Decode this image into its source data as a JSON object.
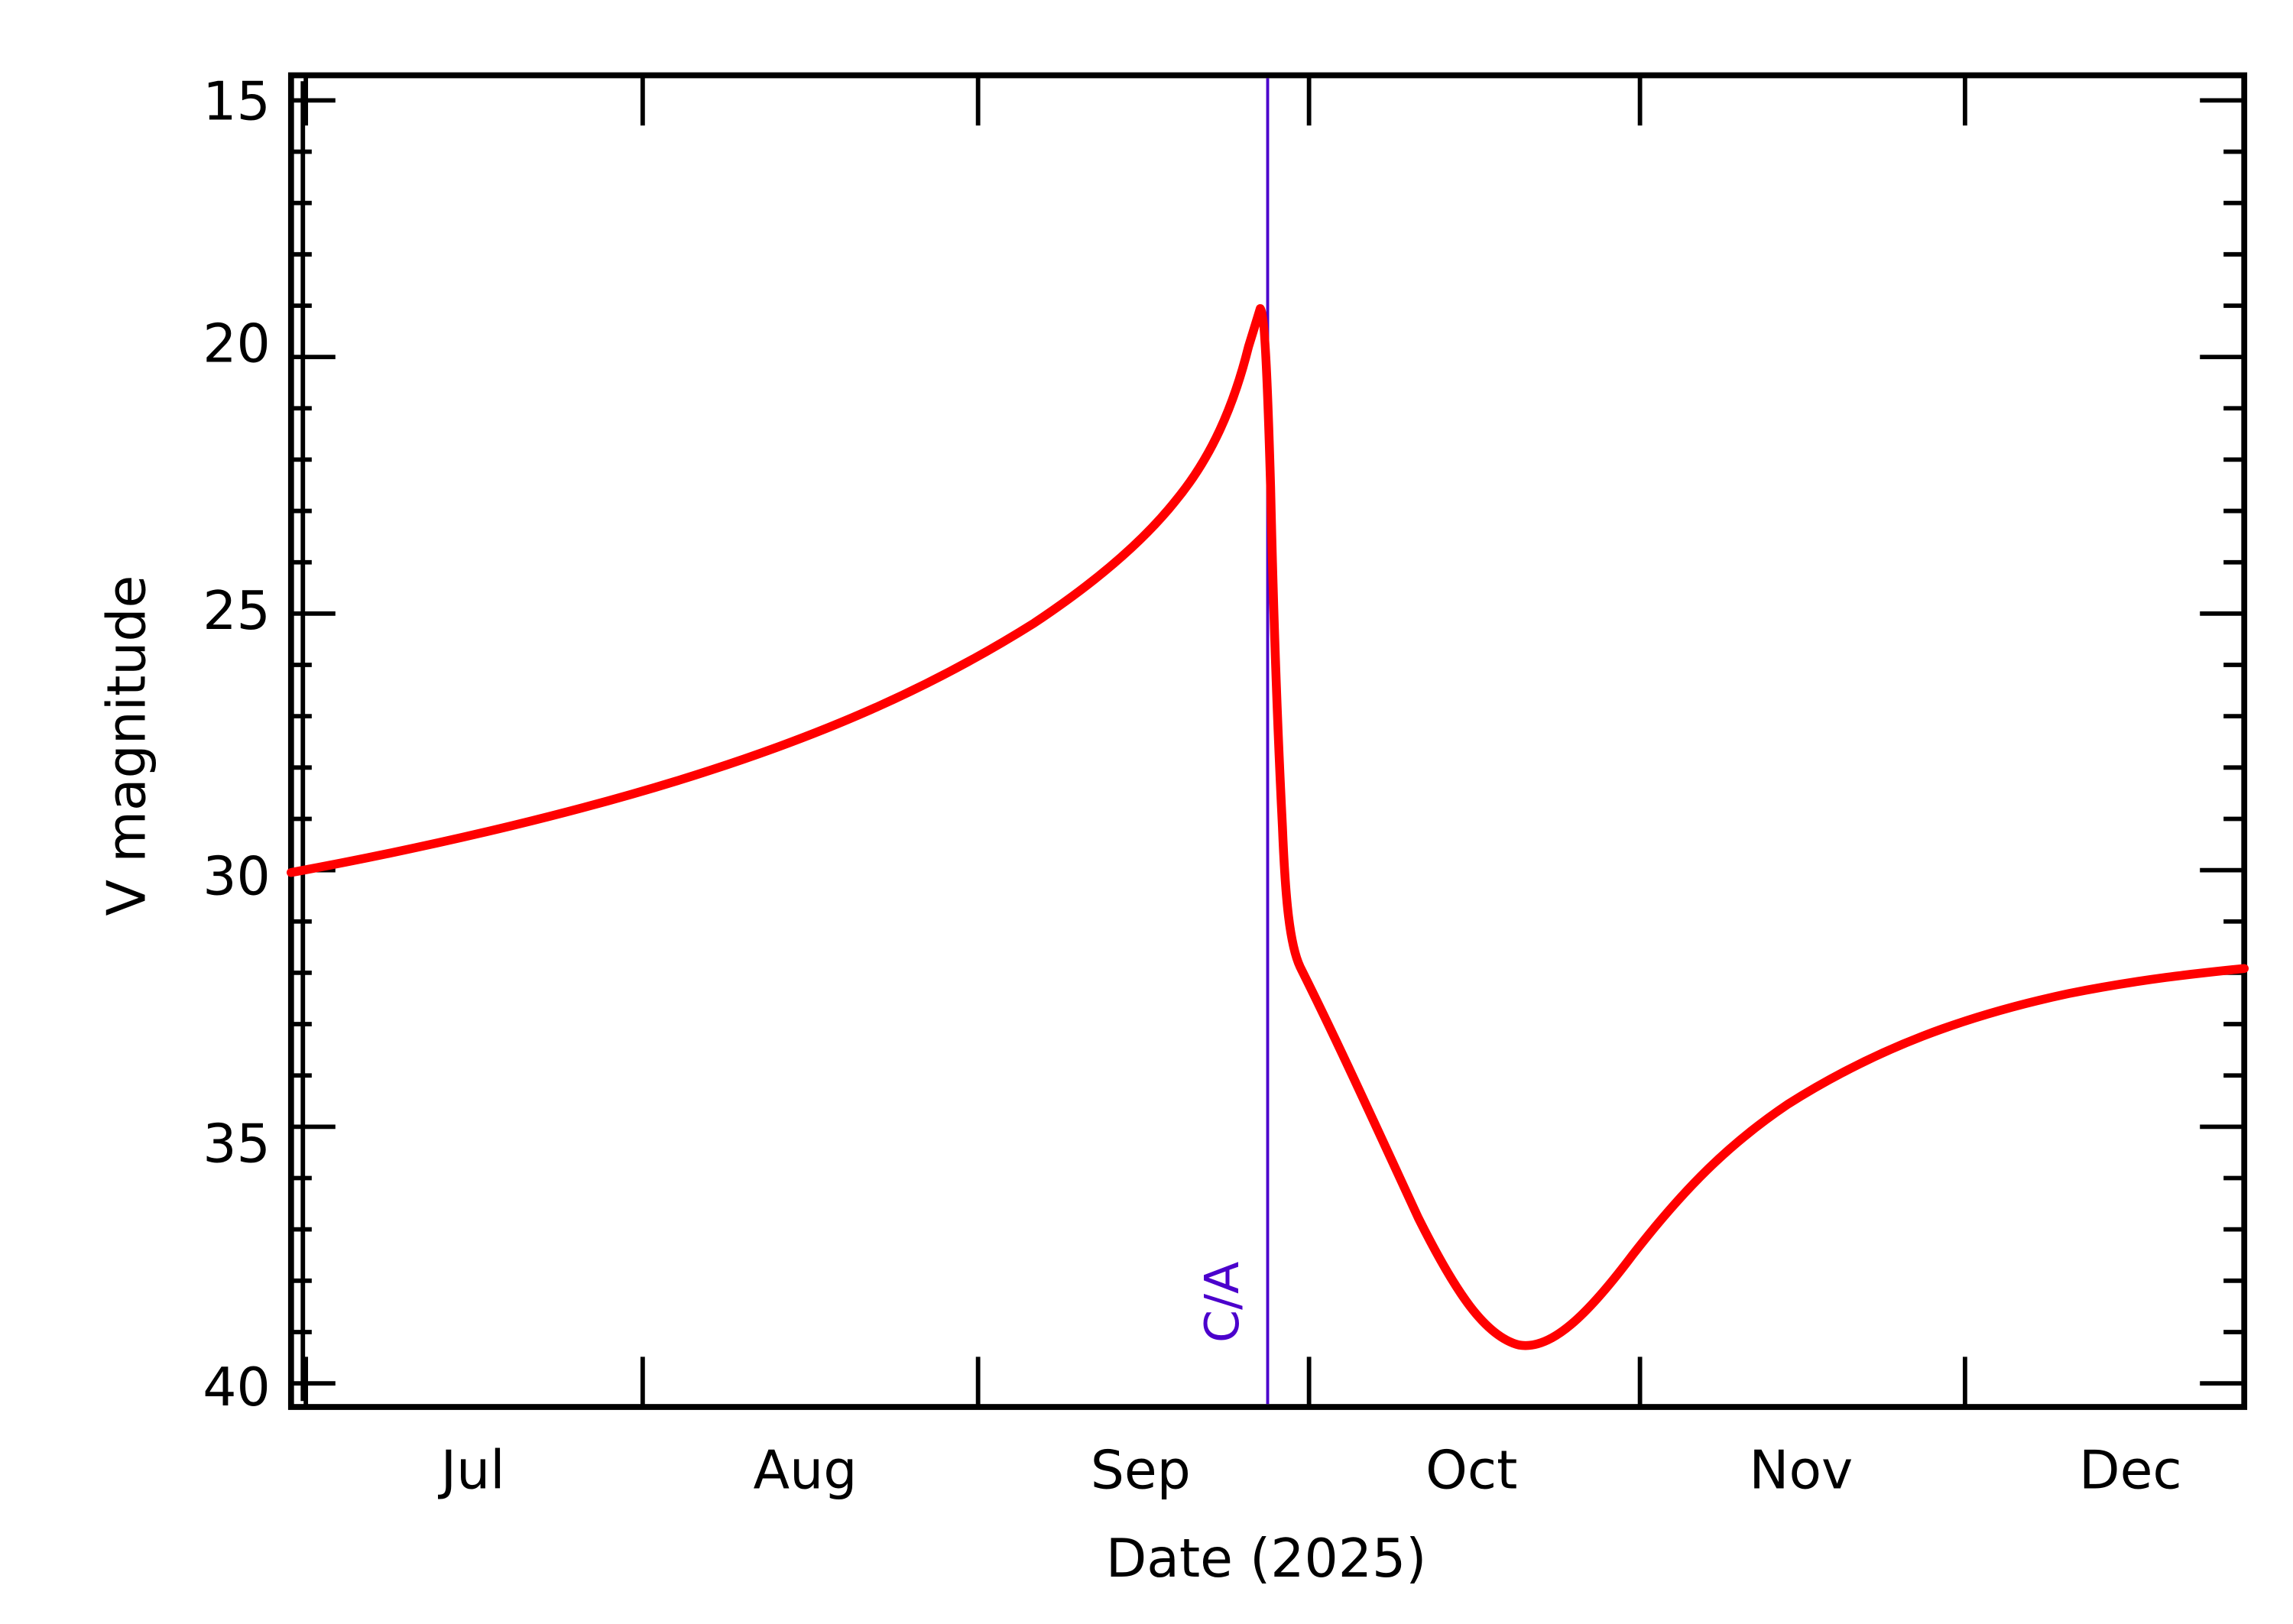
{
  "chart_data": {
    "type": "line",
    "title": "",
    "xlabel": "Date (2025)",
    "ylabel": "V magnitude",
    "y_inverted": true,
    "ylim": [
      15,
      40
    ],
    "y_ticks": [
      15,
      20,
      25,
      30,
      35,
      40
    ],
    "x_tick_labels": [
      "Jul",
      "Aug",
      "Sep",
      "Oct",
      "Nov",
      "Dec"
    ],
    "x_range": [
      "2025-06-15",
      "2025-12-15"
    ],
    "grid": false,
    "legend": null,
    "annotations": [
      {
        "type": "vline",
        "label": "C/A",
        "x": "2025-09-18",
        "color": "#4B00CC"
      }
    ],
    "series": [
      {
        "name": "V magnitude",
        "color": "#FF0000",
        "x": [
          "2025-06-15",
          "2025-07-10",
          "2025-08-01",
          "2025-08-20",
          "2025-09-04",
          "2025-09-12",
          "2025-09-17",
          "2025-09-18",
          "2025-09-19",
          "2025-09-20",
          "2025-10-01",
          "2025-10-08",
          "2025-10-12",
          "2025-10-18",
          "2025-10-26",
          "2025-11-05",
          "2025-11-19",
          "2025-12-02",
          "2025-12-15"
        ],
        "values": [
          30.0,
          28.6,
          27.4,
          25.2,
          22.9,
          20.9,
          19.4,
          24.8,
          29.4,
          31.7,
          35.4,
          38.0,
          39.2,
          38.3,
          36.3,
          34.4,
          33.0,
          32.2,
          31.8
        ]
      }
    ]
  },
  "axes": {
    "y_labels": [
      "15",
      "20",
      "25",
      "30",
      "35",
      "40"
    ],
    "x_labels": [
      "Jul",
      "Aug",
      "Sep",
      "Oct",
      "Nov",
      "Dec"
    ],
    "xlabel": "Date (2025)",
    "ylabel": "V magnitude",
    "ca_label": "C/A"
  },
  "colors": {
    "curve": "#FF0000",
    "ca_line": "#4B00CC",
    "axis": "#000000"
  }
}
